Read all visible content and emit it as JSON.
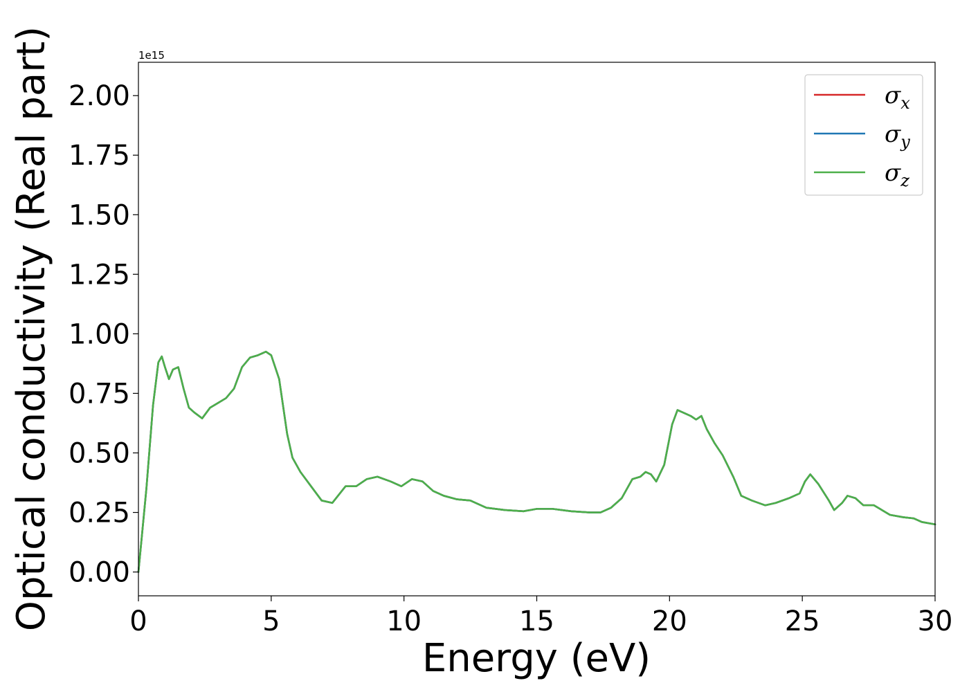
{
  "chart_data": {
    "type": "line",
    "xlabel": "Energy (eV)",
    "ylabel": "Optical conductivity (Real part)",
    "y_offset_label": "1e15",
    "xlim": [
      0,
      30
    ],
    "ylim": [
      -0.1,
      2.14
    ],
    "x_ticks": [
      0,
      5,
      10,
      15,
      20,
      25,
      30
    ],
    "x_tick_labels": [
      "0",
      "5",
      "10",
      "15",
      "20",
      "25",
      "30"
    ],
    "y_ticks": [
      0,
      0.25,
      0.5,
      0.75,
      1.0,
      1.25,
      1.5,
      1.75,
      2.0
    ],
    "y_tick_labels": [
      "0.00",
      "0.25",
      "0.50",
      "0.75",
      "1.00",
      "1.25",
      "1.50",
      "1.75",
      "2.00"
    ],
    "grid": false,
    "legend_position": "top-right",
    "x": [
      0,
      0.3,
      0.55,
      0.75,
      0.88,
      1.0,
      1.15,
      1.3,
      1.5,
      1.7,
      1.9,
      2.1,
      2.4,
      2.7,
      3.0,
      3.3,
      3.6,
      3.9,
      4.2,
      4.5,
      4.8,
      5.0,
      5.3,
      5.6,
      5.8,
      6.1,
      6.5,
      6.9,
      7.3,
      7.8,
      8.2,
      8.6,
      9.0,
      9.5,
      9.9,
      10.3,
      10.7,
      11.1,
      11.5,
      12.0,
      12.5,
      13.1,
      13.8,
      14.5,
      15.0,
      15.6,
      16.3,
      17.0,
      17.4,
      17.8,
      18.2,
      18.6,
      18.9,
      19.1,
      19.3,
      19.5,
      19.8,
      20.1,
      20.3,
      20.6,
      20.8,
      21.0,
      21.2,
      21.4,
      21.7,
      22.0,
      22.4,
      22.7,
      23.1,
      23.6,
      24.0,
      24.5,
      24.9,
      25.1,
      25.3,
      25.6,
      26.0,
      26.2,
      26.5,
      26.7,
      27.0,
      27.3,
      27.7,
      28.0,
      28.3,
      28.8,
      29.2,
      29.5,
      30.0
    ],
    "series": [
      {
        "name": "σx",
        "color": "#d62728",
        "y": [
          0.0,
          0.35,
          0.7,
          0.88,
          0.905,
          0.86,
          0.81,
          0.85,
          0.86,
          0.77,
          0.69,
          0.67,
          0.645,
          0.69,
          0.71,
          0.73,
          0.77,
          0.86,
          0.9,
          0.91,
          0.925,
          0.91,
          0.81,
          0.58,
          0.48,
          0.42,
          0.36,
          0.3,
          0.29,
          0.36,
          0.36,
          0.39,
          0.4,
          0.38,
          0.36,
          0.39,
          0.38,
          0.34,
          0.32,
          0.305,
          0.3,
          0.27,
          0.26,
          0.255,
          0.265,
          0.265,
          0.255,
          0.25,
          0.25,
          0.27,
          0.31,
          0.39,
          0.4,
          0.42,
          0.41,
          0.38,
          0.45,
          0.62,
          0.68,
          0.665,
          0.655,
          0.64,
          0.655,
          0.6,
          0.54,
          0.49,
          0.4,
          0.32,
          0.3,
          0.28,
          0.29,
          0.31,
          0.33,
          0.38,
          0.41,
          0.37,
          0.3,
          0.26,
          0.29,
          0.32,
          0.31,
          0.28,
          0.28,
          0.26,
          0.24,
          0.23,
          0.225,
          0.21,
          0.2
        ]
      },
      {
        "name": "σy",
        "color": "#1f77b4",
        "y": [
          0.0,
          0.35,
          0.7,
          0.88,
          0.905,
          0.86,
          0.81,
          0.85,
          0.86,
          0.77,
          0.69,
          0.67,
          0.645,
          0.69,
          0.71,
          0.73,
          0.77,
          0.86,
          0.9,
          0.91,
          0.925,
          0.91,
          0.81,
          0.58,
          0.48,
          0.42,
          0.36,
          0.3,
          0.29,
          0.36,
          0.36,
          0.39,
          0.4,
          0.38,
          0.36,
          0.39,
          0.38,
          0.34,
          0.32,
          0.305,
          0.3,
          0.27,
          0.26,
          0.255,
          0.265,
          0.265,
          0.255,
          0.25,
          0.25,
          0.27,
          0.31,
          0.39,
          0.4,
          0.42,
          0.41,
          0.38,
          0.45,
          0.62,
          0.68,
          0.665,
          0.655,
          0.64,
          0.655,
          0.6,
          0.54,
          0.49,
          0.4,
          0.32,
          0.3,
          0.28,
          0.29,
          0.31,
          0.33,
          0.38,
          0.41,
          0.37,
          0.3,
          0.26,
          0.29,
          0.32,
          0.31,
          0.28,
          0.28,
          0.26,
          0.24,
          0.23,
          0.225,
          0.21,
          0.2
        ]
      },
      {
        "name": "σz",
        "color": "#4daf4a",
        "y": [
          0.0,
          0.35,
          0.7,
          0.88,
          0.905,
          0.86,
          0.81,
          0.85,
          0.86,
          0.77,
          0.69,
          0.67,
          0.645,
          0.69,
          0.71,
          0.73,
          0.77,
          0.86,
          0.9,
          0.91,
          0.925,
          0.91,
          0.81,
          0.58,
          0.48,
          0.42,
          0.36,
          0.3,
          0.29,
          0.36,
          0.36,
          0.39,
          0.4,
          0.38,
          0.36,
          0.39,
          0.38,
          0.34,
          0.32,
          0.305,
          0.3,
          0.27,
          0.26,
          0.255,
          0.265,
          0.265,
          0.255,
          0.25,
          0.25,
          0.27,
          0.31,
          0.39,
          0.4,
          0.42,
          0.41,
          0.38,
          0.45,
          0.62,
          0.68,
          0.665,
          0.655,
          0.64,
          0.655,
          0.6,
          0.54,
          0.49,
          0.4,
          0.32,
          0.3,
          0.28,
          0.29,
          0.31,
          0.33,
          0.38,
          0.41,
          0.37,
          0.3,
          0.26,
          0.29,
          0.32,
          0.31,
          0.28,
          0.28,
          0.26,
          0.24,
          0.23,
          0.225,
          0.21,
          0.2
        ]
      }
    ],
    "legend": [
      {
        "symbol": "σ",
        "sub": "x",
        "color": "#d62728"
      },
      {
        "symbol": "σ",
        "sub": "y",
        "color": "#1f77b4"
      },
      {
        "symbol": "σ",
        "sub": "z",
        "color": "#4daf4a"
      }
    ]
  }
}
